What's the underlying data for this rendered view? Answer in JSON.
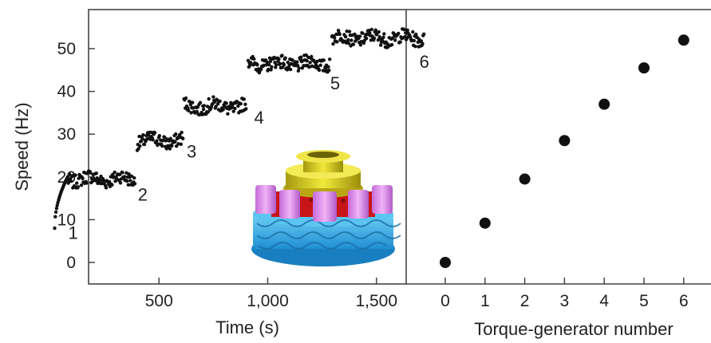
{
  "chart_data": [
    {
      "type": "scatter",
      "title": "",
      "xlabel": "Time (s)",
      "ylabel": "Speed (Hz)",
      "xlim": [
        0,
        1800
      ],
      "ylim": [
        -5,
        58
      ],
      "x_ticks": [
        {
          "value": 500,
          "label": "500"
        },
        {
          "value": 1000,
          "label": "1,000"
        },
        {
          "value": 1500,
          "label": "1,500"
        }
      ],
      "y_ticks": [
        {
          "value": 0,
          "label": "0"
        },
        {
          "value": 10,
          "label": "10"
        },
        {
          "value": 20,
          "label": "20"
        },
        {
          "value": 30,
          "label": "30"
        },
        {
          "value": 40,
          "label": "40"
        },
        {
          "value": 50,
          "label": "50"
        }
      ],
      "segments": [
        {
          "t_start": 20,
          "t_end": 80,
          "speed_start": 8,
          "speed_end": 20
        },
        {
          "t_start": 80,
          "t_end": 390,
          "speed": 19.5
        },
        {
          "t_start": 400,
          "t_end": 610,
          "speed": 28.5
        },
        {
          "t_start": 615,
          "t_end": 900,
          "speed": 36.5
        },
        {
          "t_start": 910,
          "t_end": 1285,
          "speed": 46.5
        },
        {
          "t_start": 1295,
          "t_end": 1720,
          "speed": 52.5
        }
      ],
      "step_labels": [
        {
          "text": "1",
          "x": 105,
          "y": 5.5
        },
        {
          "text": "2",
          "x": 425,
          "y": 14.5
        },
        {
          "text": "3",
          "x": 650,
          "y": 24.5
        },
        {
          "text": "4",
          "x": 960,
          "y": 32.5
        },
        {
          "text": "5",
          "x": 1310,
          "y": 40.5
        },
        {
          "text": "6",
          "x": 1720,
          "y": 45.5
        }
      ],
      "inset_image": "bacterial flagellar motor structure"
    },
    {
      "type": "scatter",
      "title": "",
      "xlabel": "Torque-generator number",
      "ylabel": "",
      "xlim": [
        -0.5,
        6.6
      ],
      "ylim": [
        -5,
        58
      ],
      "x_ticks": [
        "0",
        "1",
        "2",
        "3",
        "4",
        "5",
        "6"
      ],
      "x": [
        0,
        1,
        2,
        3,
        4,
        5,
        6
      ],
      "y": [
        0,
        9.2,
        19.5,
        28.5,
        37,
        45.5,
        52
      ]
    }
  ]
}
